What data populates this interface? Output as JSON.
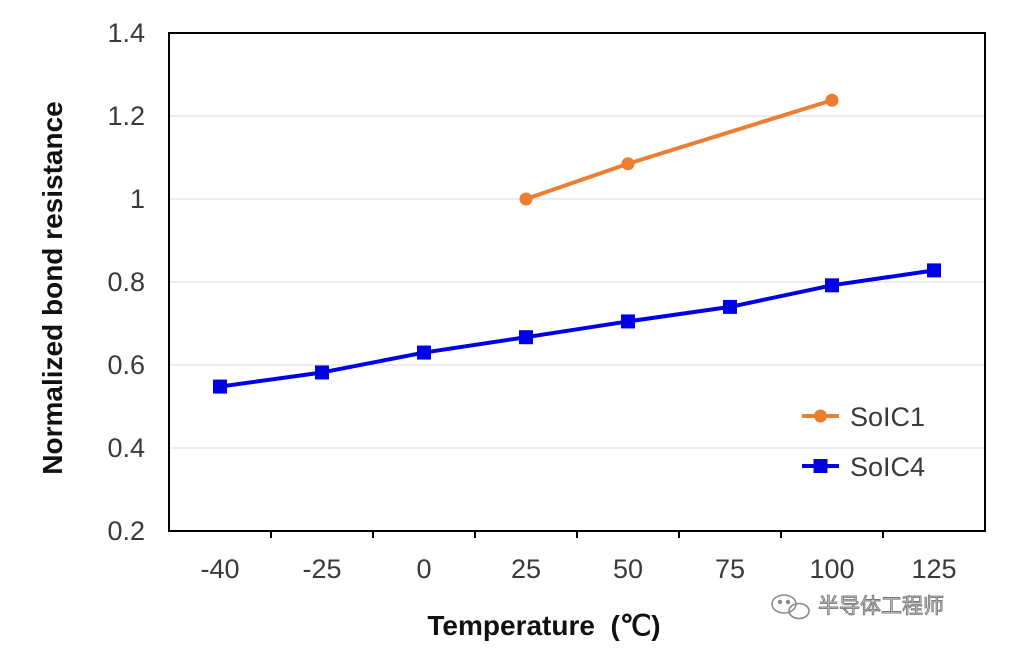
{
  "chart_data": {
    "type": "line",
    "xlabel": "Temperature  (℃)",
    "ylabel": "Normalized bond resistance",
    "categories": [
      "-40",
      "-25",
      "0",
      "25",
      "50",
      "75",
      "100",
      "125"
    ],
    "y_ticks": [
      "0.2",
      "0.4",
      "0.6",
      "0.8",
      "1",
      "1.2",
      "1.4"
    ],
    "ylim": [
      0.2,
      1.4
    ],
    "grid": "horizontal",
    "legend_position": "bottom-right",
    "series": [
      {
        "name": "SoIC1",
        "color": "#ED7D31",
        "marker": "circle",
        "x": [
          "25",
          "50",
          "100"
        ],
        "values": [
          1.0,
          1.085,
          1.238
        ]
      },
      {
        "name": "SoIC4",
        "color": "#0000E6",
        "marker": "square",
        "x": [
          "-40",
          "-25",
          "0",
          "25",
          "50",
          "75",
          "100",
          "125"
        ],
        "values": [
          0.548,
          0.582,
          0.63,
          0.667,
          0.705,
          0.74,
          0.792,
          0.828
        ]
      }
    ]
  },
  "watermark": {
    "text": "半导体工程师"
  }
}
